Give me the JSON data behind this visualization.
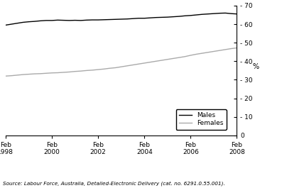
{
  "title": "",
  "ylabel": "%",
  "ylim": [
    0,
    70
  ],
  "yticks": [
    0,
    10,
    20,
    30,
    40,
    50,
    60,
    70
  ],
  "xtick_labels": [
    "Feb\n1998",
    "Feb\n2000",
    "Feb\n2002",
    "Feb\n2004",
    "Feb\n2006",
    "Feb\n2008"
  ],
  "xtick_years": [
    1998,
    2000,
    2002,
    2004,
    2006,
    2008
  ],
  "xlim": [
    1998,
    2008
  ],
  "males_color": "#000000",
  "females_color": "#aaaaaa",
  "source_text": "Source: Labour Force, Australia, Detailed-Electronic Delivery (cat. no. 6291.0.55.001).",
  "males_data": {
    "years": [
      1998,
      1998.25,
      1998.5,
      1998.75,
      1999,
      1999.25,
      1999.5,
      1999.75,
      2000,
      2000.25,
      2000.5,
      2000.75,
      2001,
      2001.25,
      2001.5,
      2001.75,
      2002,
      2002.25,
      2002.5,
      2002.75,
      2003,
      2003.25,
      2003.5,
      2003.75,
      2004,
      2004.25,
      2004.5,
      2004.75,
      2005,
      2005.25,
      2005.5,
      2005.75,
      2006,
      2006.25,
      2006.5,
      2006.75,
      2007,
      2007.25,
      2007.5,
      2007.75,
      2008
    ],
    "values": [
      59.5,
      60.0,
      60.5,
      61.0,
      61.3,
      61.5,
      61.8,
      62.0,
      62.0,
      62.2,
      62.1,
      62.0,
      62.1,
      62.0,
      62.2,
      62.3,
      62.3,
      62.4,
      62.5,
      62.6,
      62.7,
      62.8,
      63.0,
      63.2,
      63.2,
      63.4,
      63.6,
      63.7,
      63.8,
      64.0,
      64.2,
      64.5,
      64.7,
      65.0,
      65.3,
      65.5,
      65.7,
      65.9,
      66.0,
      65.7,
      65.5
    ]
  },
  "females_data": {
    "years": [
      1998,
      1998.25,
      1998.5,
      1998.75,
      1999,
      1999.25,
      1999.5,
      1999.75,
      2000,
      2000.25,
      2000.5,
      2000.75,
      2001,
      2001.25,
      2001.5,
      2001.75,
      2002,
      2002.25,
      2002.5,
      2002.75,
      2003,
      2003.25,
      2003.5,
      2003.75,
      2004,
      2004.25,
      2004.5,
      2004.75,
      2005,
      2005.25,
      2005.5,
      2005.75,
      2006,
      2006.25,
      2006.5,
      2006.75,
      2007,
      2007.25,
      2007.5,
      2007.75,
      2008
    ],
    "values": [
      32.0,
      32.2,
      32.5,
      32.8,
      33.0,
      33.2,
      33.3,
      33.5,
      33.7,
      33.8,
      34.0,
      34.2,
      34.5,
      34.7,
      35.0,
      35.2,
      35.5,
      35.8,
      36.2,
      36.5,
      37.0,
      37.5,
      38.0,
      38.5,
      39.0,
      39.5,
      40.0,
      40.5,
      41.0,
      41.5,
      42.0,
      42.5,
      43.2,
      43.8,
      44.3,
      44.8,
      45.3,
      45.8,
      46.3,
      46.8,
      47.2
    ]
  },
  "legend_labels": [
    "Males",
    "Females"
  ],
  "line_width": 1.0
}
